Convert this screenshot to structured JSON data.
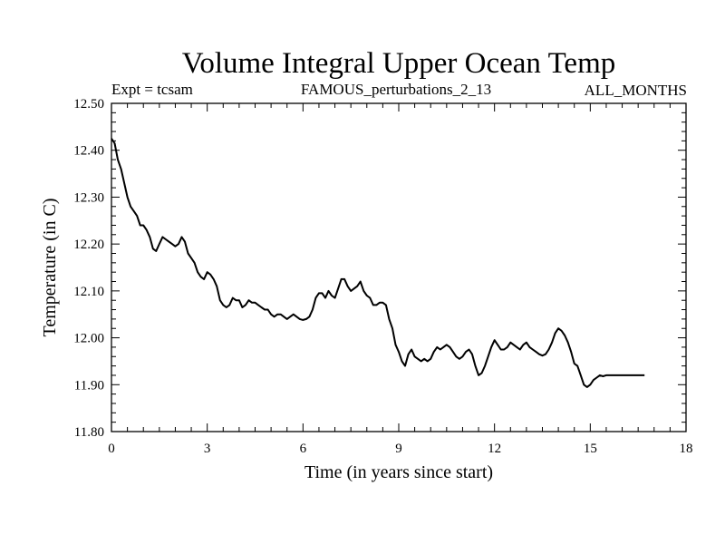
{
  "chart_data": {
    "type": "line",
    "title": "Volume Integral Upper Ocean Temp",
    "header_left": "Expt = tcsam",
    "header_center": "FAMOUS_perturbations_2_13",
    "header_right": "ALL_MONTHS",
    "xlabel": "Time (in years since start)",
    "ylabel": "Temperature (in C)",
    "xlim": [
      0,
      18
    ],
    "ylim": [
      11.8,
      12.5
    ],
    "x_ticks": [
      0,
      3,
      6,
      9,
      12,
      15,
      18
    ],
    "x_tick_labels": [
      "0",
      "3",
      "6",
      "9",
      "12",
      "15",
      "18"
    ],
    "y_ticks": [
      11.8,
      11.9,
      12.0,
      12.1,
      12.2,
      12.3,
      12.4,
      12.5
    ],
    "y_tick_labels": [
      "11.80",
      "11.90",
      "12.00",
      "12.10",
      "12.20",
      "12.30",
      "12.40",
      "12.50"
    ],
    "grid": false,
    "series": [
      {
        "name": "Volume Integral Upper Ocean Temp",
        "color": "#000000",
        "x": [
          0.0,
          0.1,
          0.2,
          0.3,
          0.4,
          0.5,
          0.6,
          0.7,
          0.8,
          0.9,
          1.0,
          1.1,
          1.2,
          1.3,
          1.4,
          1.5,
          1.6,
          1.7,
          1.8,
          1.9,
          2.0,
          2.1,
          2.2,
          2.3,
          2.4,
          2.5,
          2.6,
          2.7,
          2.8,
          2.9,
          3.0,
          3.1,
          3.2,
          3.3,
          3.4,
          3.5,
          3.6,
          3.7,
          3.8,
          3.9,
          4.0,
          4.1,
          4.2,
          4.3,
          4.4,
          4.5,
          4.6,
          4.7,
          4.8,
          4.9,
          5.0,
          5.1,
          5.2,
          5.3,
          5.4,
          5.5,
          5.6,
          5.7,
          5.8,
          5.9,
          6.0,
          6.1,
          6.2,
          6.3,
          6.4,
          6.5,
          6.6,
          6.7,
          6.8,
          6.9,
          7.0,
          7.1,
          7.2,
          7.3,
          7.4,
          7.5,
          7.6,
          7.7,
          7.8,
          7.9,
          8.0,
          8.1,
          8.2,
          8.3,
          8.4,
          8.5,
          8.6,
          8.7,
          8.8,
          8.9,
          9.0,
          9.1,
          9.2,
          9.3,
          9.4,
          9.5,
          9.6,
          9.7,
          9.8,
          9.9,
          10.0,
          10.1,
          10.2,
          10.3,
          10.4,
          10.5,
          10.6,
          10.7,
          10.8,
          10.9,
          11.0,
          11.1,
          11.2,
          11.3,
          11.4,
          11.5,
          11.6,
          11.7,
          11.8,
          11.9,
          12.0,
          12.1,
          12.2,
          12.3,
          12.4,
          12.5,
          12.6,
          12.7,
          12.8,
          12.9,
          13.0,
          13.1,
          13.2,
          13.3,
          13.4,
          13.5,
          13.6,
          13.7,
          13.8,
          13.9,
          14.0,
          14.1,
          14.2,
          14.3,
          14.4,
          14.5,
          14.6,
          14.7,
          14.8,
          14.9,
          15.0,
          15.1,
          15.2,
          15.3,
          15.4,
          15.5,
          15.6,
          15.7,
          15.8,
          15.9,
          16.0,
          16.1,
          16.2,
          16.3,
          16.4,
          16.5,
          16.6,
          16.7
        ],
        "y": [
          12.425,
          12.415,
          12.38,
          12.36,
          12.33,
          12.3,
          12.28,
          12.27,
          12.26,
          12.24,
          12.24,
          12.23,
          12.215,
          12.19,
          12.185,
          12.2,
          12.215,
          12.21,
          12.205,
          12.2,
          12.195,
          12.2,
          12.215,
          12.205,
          12.18,
          12.17,
          12.16,
          12.14,
          12.13,
          12.125,
          12.14,
          12.135,
          12.125,
          12.11,
          12.08,
          12.07,
          12.065,
          12.07,
          12.085,
          12.08,
          12.08,
          12.065,
          12.07,
          12.08,
          12.075,
          12.075,
          12.07,
          12.065,
          12.06,
          12.06,
          12.05,
          12.045,
          12.05,
          12.05,
          12.045,
          12.04,
          12.045,
          12.05,
          12.045,
          12.04,
          12.038,
          12.04,
          12.045,
          12.06,
          12.085,
          12.095,
          12.095,
          12.085,
          12.1,
          12.09,
          12.085,
          12.105,
          12.125,
          12.125,
          12.11,
          12.1,
          12.105,
          12.11,
          12.12,
          12.1,
          12.09,
          12.085,
          12.07,
          12.07,
          12.075,
          12.075,
          12.07,
          12.04,
          12.02,
          11.985,
          11.97,
          11.95,
          11.94,
          11.965,
          11.975,
          11.96,
          11.955,
          11.95,
          11.955,
          11.95,
          11.955,
          11.97,
          11.98,
          11.975,
          11.98,
          11.985,
          11.98,
          11.97,
          11.96,
          11.955,
          11.96,
          11.97,
          11.975,
          11.965,
          11.94,
          11.92,
          11.925,
          11.94,
          11.96,
          11.98,
          11.995,
          11.985,
          11.975,
          11.975,
          11.98,
          11.99,
          11.985,
          11.98,
          11.975,
          11.985,
          11.99,
          11.98,
          11.975,
          11.97,
          11.965,
          11.962,
          11.965,
          11.975,
          11.99,
          12.01,
          12.02,
          12.015,
          12.005,
          11.99,
          11.97,
          11.945,
          11.94,
          11.92,
          11.9,
          11.895,
          11.9,
          11.91,
          11.915,
          11.92,
          11.918,
          11.92,
          11.92,
          11.92,
          11.92,
          11.92,
          11.92,
          11.92,
          11.92,
          11.92,
          11.92,
          11.92,
          11.92,
          11.92
        ]
      }
    ]
  }
}
